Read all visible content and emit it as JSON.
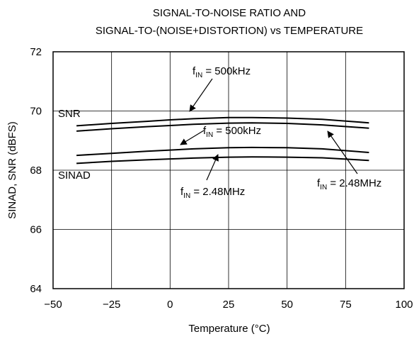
{
  "chart_data": {
    "type": "line",
    "title": "SIGNAL-TO-NOISE RATIO AND",
    "subtitle": "SIGNAL-TO-(NOISE+DISTORTION) vs TEMPERATURE",
    "xlabel": "Temperature (°C)",
    "ylabel": "SINAD, SNR (dBFS)",
    "xlim": [
      -50,
      100
    ],
    "ylim": [
      64,
      72
    ],
    "x_ticks": [
      -50,
      -25,
      0,
      25,
      50,
      75,
      100
    ],
    "x_tick_labels": [
      "−50",
      "−25",
      "0",
      "25",
      "50",
      "75",
      "100"
    ],
    "y_ticks": [
      64,
      66,
      68,
      70,
      72
    ],
    "y_tick_labels": [
      "64",
      "66",
      "68",
      "70",
      "72"
    ],
    "grid": true,
    "series": [
      {
        "x": [
          -40,
          -25,
          -10,
          0,
          10,
          25,
          35,
          50,
          65,
          85
        ],
        "y": [
          69.5,
          69.58,
          69.65,
          69.7,
          69.74,
          69.78,
          69.78,
          69.76,
          69.72,
          69.6
        ]
      },
      {
        "x": [
          -40,
          -25,
          -10,
          0,
          10,
          25,
          35,
          50,
          65,
          85
        ],
        "y": [
          69.32,
          69.4,
          69.47,
          69.51,
          69.55,
          69.59,
          69.6,
          69.58,
          69.53,
          69.42
        ]
      },
      {
        "x": [
          -40,
          -25,
          -10,
          0,
          10,
          25,
          35,
          50,
          65,
          85
        ],
        "y": [
          68.5,
          68.57,
          68.64,
          68.68,
          68.72,
          68.76,
          68.77,
          68.76,
          68.72,
          68.6
        ]
      },
      {
        "x": [
          -40,
          -25,
          -10,
          0,
          10,
          25,
          35,
          50,
          65,
          85
        ],
        "y": [
          68.23,
          68.3,
          68.35,
          68.38,
          68.41,
          68.44,
          68.45,
          68.44,
          68.42,
          68.33
        ]
      }
    ],
    "annotations": [
      {
        "main": "f",
        "sub": "IN",
        "rest": " = 500kHz"
      },
      {
        "main": "f",
        "sub": "IN",
        "rest": " = 500kHz"
      },
      {
        "main": "f",
        "sub": "IN",
        "rest": " = 2.48MHz"
      },
      {
        "main": "f",
        "sub": "IN",
        "rest": " = 2.48MHz"
      }
    ],
    "curve_labels": [
      "SNR",
      "SINAD"
    ]
  }
}
